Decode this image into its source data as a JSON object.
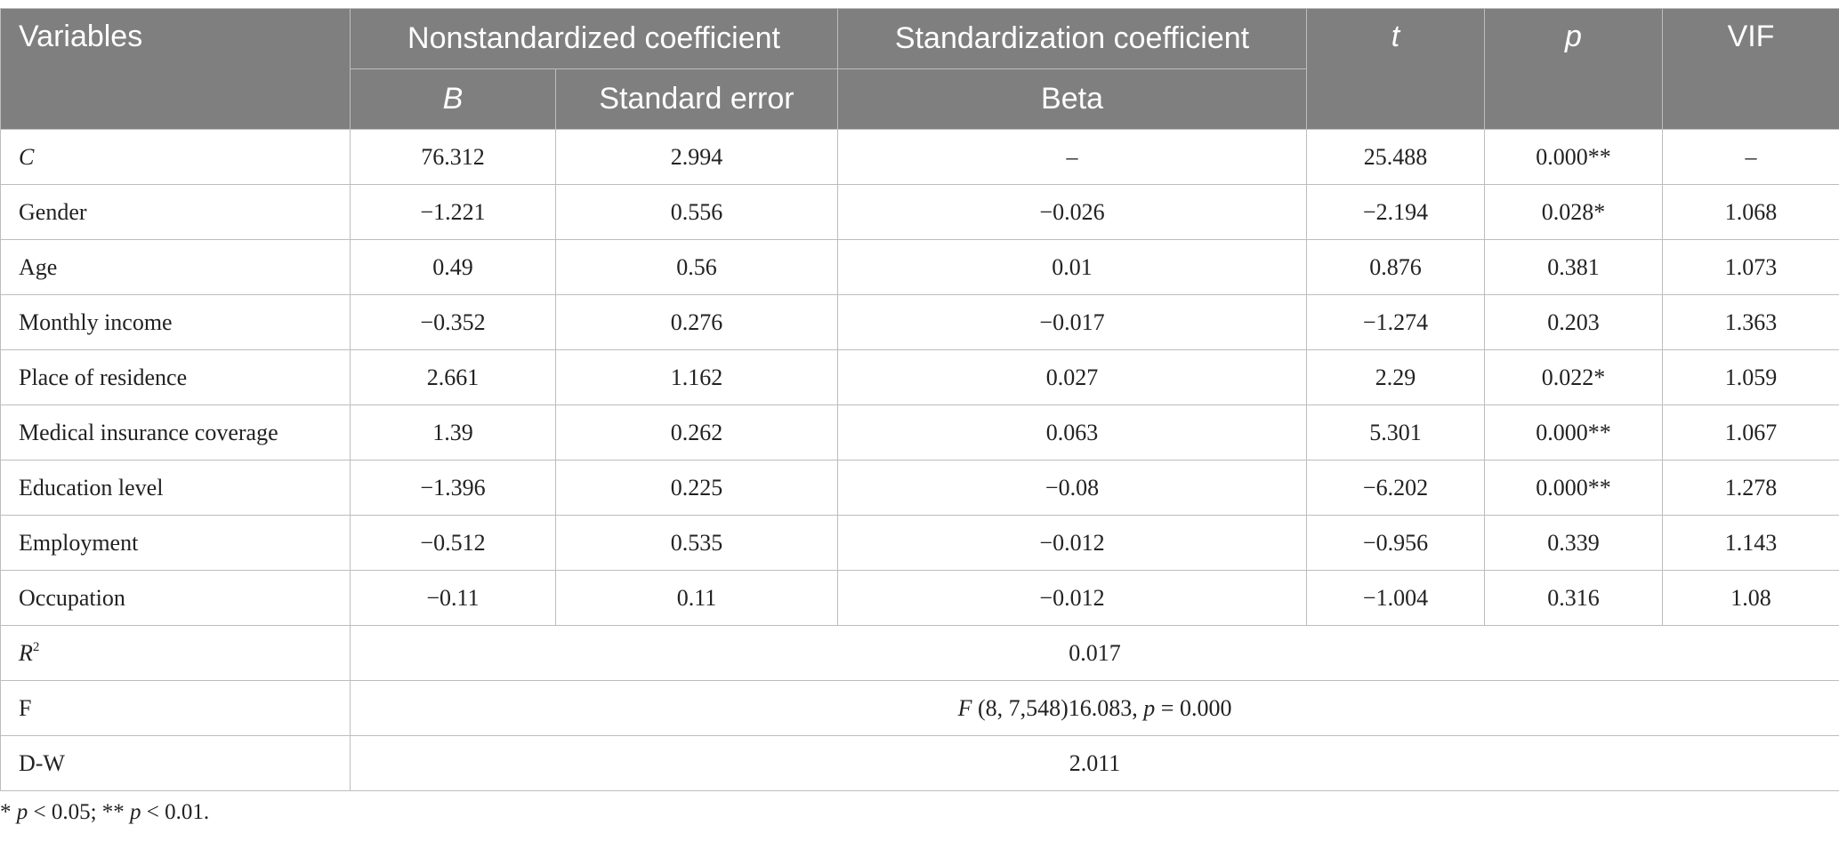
{
  "headers": {
    "variables": "Variables",
    "nonstandardized": "Nonstandardized coefficient",
    "standardization": "Standardization coefficient",
    "t": "t",
    "p": "p",
    "vif": "VIF",
    "b": "B",
    "standard_error": "Standard error",
    "beta": "Beta"
  },
  "rows": [
    {
      "name": "C",
      "b": "76.312",
      "se": "2.994",
      "beta": "–",
      "t": "25.488",
      "p": "0.000**",
      "vif": "–"
    },
    {
      "name": "Gender",
      "b": "−1.221",
      "se": "0.556",
      "beta": "−0.026",
      "t": "−2.194",
      "p": "0.028*",
      "vif": "1.068"
    },
    {
      "name": "Age",
      "b": "0.49",
      "se": "0.56",
      "beta": "0.01",
      "t": "0.876",
      "p": "0.381",
      "vif": "1.073"
    },
    {
      "name": "Monthly income",
      "b": "−0.352",
      "se": "0.276",
      "beta": "−0.017",
      "t": "−1.274",
      "p": "0.203",
      "vif": "1.363"
    },
    {
      "name": "Place of residence",
      "b": "2.661",
      "se": "1.162",
      "beta": "0.027",
      "t": "2.29",
      "p": "0.022*",
      "vif": "1.059"
    },
    {
      "name": "Medical insurance coverage",
      "b": "1.39",
      "se": "0.262",
      "beta": "0.063",
      "t": "5.301",
      "p": "0.000**",
      "vif": "1.067"
    },
    {
      "name": "Education level",
      "b": "−1.396",
      "se": "0.225",
      "beta": "−0.08",
      "t": "−6.202",
      "p": "0.000**",
      "vif": "1.278"
    },
    {
      "name": "Employment",
      "b": "−0.512",
      "se": "0.535",
      "beta": "−0.012",
      "t": "−0.956",
      "p": "0.339",
      "vif": "1.143"
    },
    {
      "name": "Occupation",
      "b": "−0.11",
      "se": "0.11",
      "beta": "−0.012",
      "t": "−1.004",
      "p": "0.316",
      "vif": "1.08"
    }
  ],
  "summary": {
    "r2": {
      "label_base": "R",
      "label_sup": "2",
      "value": "0.017"
    },
    "f": {
      "label": "F",
      "value_italic_f": "F",
      "value_main": " (8, 7,548)16.083, ",
      "value_italic_p": "p",
      "value_rest": " = 0.000"
    },
    "dw": {
      "label": "D-W",
      "value": "2.011"
    }
  },
  "footnote": {
    "part1": "* ",
    "p1": "p",
    "part2": " < 0.05; ** ",
    "p2": "p",
    "part3": " < 0.01."
  }
}
